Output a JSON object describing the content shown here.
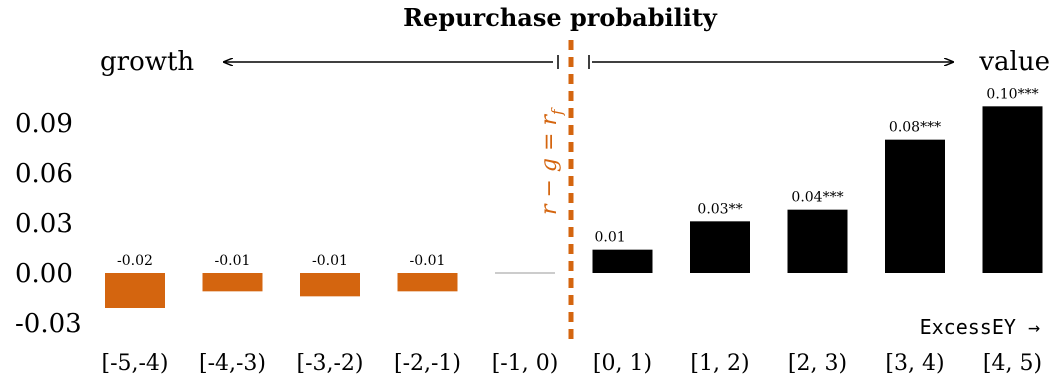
{
  "chart_data": {
    "type": "bar",
    "title": "Repurchase probability",
    "categories": [
      "[-5,-4)",
      "[-4,-3)",
      "[-3,-2)",
      "[-2,-1)",
      "[-1, 0)",
      "[0, 1)",
      "[1, 2)",
      "[2, 3)",
      "[3, 4)",
      "[4, 5)"
    ],
    "values": [
      -0.021,
      -0.011,
      -0.014,
      -0.011,
      0.0,
      0.014,
      0.031,
      0.038,
      0.08,
      0.1
    ],
    "data_labels": [
      "-0.02",
      "-0.01",
      "-0.01",
      "-0.01",
      "",
      "0.01",
      "0.03**",
      "0.04***",
      "0.08***",
      "0.10***"
    ],
    "yticks": [
      "0.09",
      "0.06",
      "0.03",
      "0.00",
      "-0.03"
    ],
    "ytick_values": [
      0.09,
      0.06,
      0.03,
      0.0,
      -0.03
    ],
    "ylim": [
      -0.03,
      0.1
    ],
    "grid": false,
    "legend": "none",
    "annotations": {
      "left_arrow_label": "growth",
      "right_arrow_label": "value",
      "divider_label": "r − g = r_f",
      "x_axis_note": "ExcessEY →"
    },
    "colors": {
      "negative": "#D4650F",
      "positive": "#000000",
      "zero": "#cccccc",
      "divider": "#D4650F",
      "text": "#000000"
    }
  }
}
